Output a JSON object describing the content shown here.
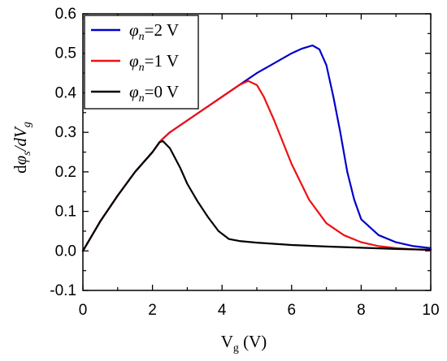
{
  "chart_data": {
    "type": "line",
    "title": "",
    "xlabel": {
      "base": "V",
      "sub": "g",
      "suffix": " (V)"
    },
    "ylabel": {
      "prefix": "d",
      "sym1": "φ",
      "sub1": "s",
      "mid": "/dV",
      "sub2": "g"
    },
    "xlim": [
      0,
      10
    ],
    "ylim": [
      -0.1,
      0.6
    ],
    "xticks": [
      0,
      2,
      4,
      6,
      8,
      10
    ],
    "yticks": [
      -0.1,
      0.0,
      0.1,
      0.2,
      0.3,
      0.4,
      0.5,
      0.6
    ],
    "grid": false,
    "legend_position": "top-left",
    "series": [
      {
        "name": "φn=2 V",
        "label": {
          "sym": "φ",
          "sub": "n",
          "rest": "=2 V"
        },
        "color": "#0000cc",
        "x": [
          0,
          0.5,
          1,
          1.5,
          2,
          2.25,
          2.5,
          3,
          3.5,
          4,
          4.5,
          5,
          5.5,
          6,
          6.3,
          6.6,
          6.8,
          7,
          7.2,
          7.4,
          7.6,
          7.8,
          8,
          8.5,
          9,
          9.5,
          10
        ],
        "y": [
          0,
          0.075,
          0.14,
          0.2,
          0.25,
          0.28,
          0.3,
          0.33,
          0.36,
          0.39,
          0.42,
          0.45,
          0.475,
          0.5,
          0.512,
          0.52,
          0.51,
          0.47,
          0.39,
          0.3,
          0.2,
          0.13,
          0.08,
          0.04,
          0.022,
          0.012,
          0.007
        ]
      },
      {
        "name": "φn=1 V",
        "label": {
          "sym": "φ",
          "sub": "n",
          "rest": "=1 V"
        },
        "color": "#ee1111",
        "x": [
          0,
          0.5,
          1,
          1.5,
          2,
          2.25,
          2.5,
          3,
          3.5,
          4,
          4.5,
          4.75,
          5,
          5.2,
          5.5,
          6,
          6.5,
          7,
          7.5,
          8,
          8.5,
          9,
          9.5,
          10
        ],
        "y": [
          0,
          0.075,
          0.14,
          0.2,
          0.25,
          0.28,
          0.3,
          0.33,
          0.36,
          0.39,
          0.42,
          0.43,
          0.42,
          0.39,
          0.33,
          0.22,
          0.13,
          0.07,
          0.04,
          0.022,
          0.012,
          0.007,
          0.004,
          0.002
        ]
      },
      {
        "name": "φn=0 V",
        "label": {
          "sym": "φ",
          "sub": "n",
          "rest": "=0 V"
        },
        "color": "#000000",
        "x": [
          0,
          0.5,
          1,
          1.5,
          2,
          2.2,
          2.3,
          2.5,
          2.8,
          3,
          3.3,
          3.6,
          3.9,
          4.2,
          4.5,
          5,
          6,
          7,
          8,
          9,
          10
        ],
        "y": [
          0,
          0.075,
          0.14,
          0.2,
          0.25,
          0.275,
          0.278,
          0.26,
          0.21,
          0.17,
          0.125,
          0.085,
          0.05,
          0.03,
          0.025,
          0.021,
          0.015,
          0.011,
          0.008,
          0.005,
          0.003
        ]
      }
    ]
  }
}
